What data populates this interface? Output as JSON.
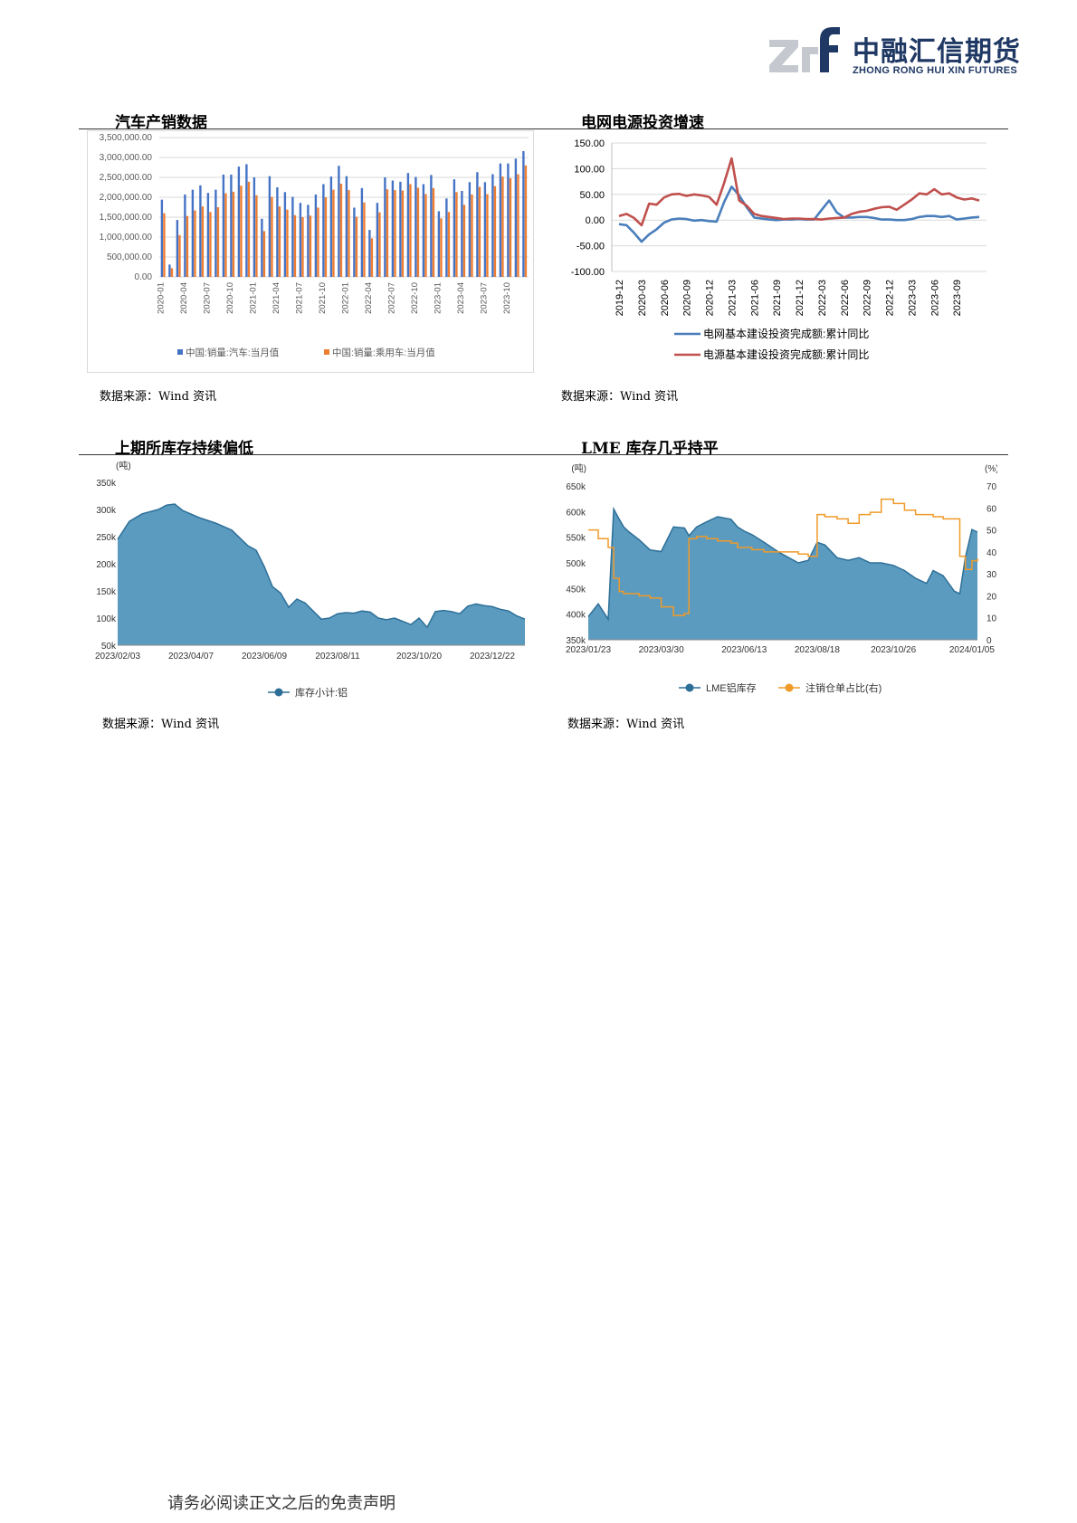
{
  "logo": {
    "mark": "zrf",
    "name_cn": "中融汇信期货",
    "name_en": "ZHONG RONG HUI XIN FUTURES"
  },
  "sections": [
    {
      "title": "汽车产销数据",
      "source": "数据来源：Wind 资讯"
    },
    {
      "title": "电网电源投资增速",
      "source": "数据来源：Wind 资讯"
    },
    {
      "title": "上期所库存持续偏低",
      "source": "数据来源：Wind 资讯"
    },
    {
      "title": "LME 库存几乎持平",
      "source": "数据来源：Wind 资讯"
    }
  ],
  "footer": "请务必阅读正文之后的免责声明",
  "chart_data": [
    {
      "type": "bar",
      "title": "汽车产销数据",
      "ylim": [
        0,
        3500000
      ],
      "yticks": [
        0,
        500000,
        1000000,
        1500000,
        2000000,
        2500000,
        3000000,
        3500000
      ],
      "ytick_labels": [
        "0.00",
        "500,000.00",
        "1,000,000.00",
        "1,500,000.00",
        "2,000,000.00",
        "2,500,000.00",
        "3,000,000.00",
        "3,500,000.00"
      ],
      "xtick_labels": [
        "2020-01",
        "2020-04",
        "2020-07",
        "2020-10",
        "2021-01",
        "2021-04",
        "2021-07",
        "2021-10",
        "2022-01",
        "2022-04",
        "2022-07",
        "2022-10",
        "2023-01",
        "2023-04",
        "2023-07",
        "2023-10"
      ],
      "legend_position": "bottom",
      "series": [
        {
          "name": "中国:销量:汽车:当月值",
          "color": "#4472c4",
          "values": [
            1940000,
            310000,
            1430000,
            2070000,
            2190000,
            2300000,
            2110000,
            2190000,
            2570000,
            2570000,
            2770000,
            2830000,
            2500000,
            1460000,
            2530000,
            2250000,
            2130000,
            2010000,
            1860000,
            1810000,
            2070000,
            2330000,
            2520000,
            2790000,
            2530000,
            1740000,
            2230000,
            1180000,
            1860000,
            2500000,
            2420000,
            2390000,
            2610000,
            2510000,
            2330000,
            2560000,
            1650000,
            1970000,
            2450000,
            2160000,
            2380000,
            2630000,
            2380000,
            2580000,
            2850000,
            2850000,
            2970000,
            3160000
          ]
        },
        {
          "name": "中国:销量:乘用车:当月值",
          "color": "#ed7d31",
          "values": [
            1600000,
            220000,
            1050000,
            1530000,
            1670000,
            1770000,
            1630000,
            1750000,
            2100000,
            2140000,
            2290000,
            2390000,
            2050000,
            1150000,
            2010000,
            1770000,
            1690000,
            1550000,
            1500000,
            1540000,
            1740000,
            2000000,
            2190000,
            2340000,
            2180000,
            1510000,
            1870000,
            970000,
            1620000,
            2200000,
            2180000,
            2170000,
            2330000,
            2240000,
            2080000,
            2230000,
            1470000,
            1630000,
            2130000,
            1810000,
            2070000,
            2260000,
            2080000,
            2280000,
            2520000,
            2480000,
            2580000,
            2800000
          ]
        }
      ]
    },
    {
      "type": "line",
      "title": "电网电源投资增速",
      "ylim": [
        -100,
        150
      ],
      "yticks": [
        -100,
        -50,
        0,
        50,
        100,
        150
      ],
      "ytick_labels": [
        "-100.00",
        "-50.00",
        "0.00",
        "50.00",
        "100.00",
        "150.00"
      ],
      "xtick_labels": [
        "2019-12",
        "2020-03",
        "2020-06",
        "2020-09",
        "2020-12",
        "2021-03",
        "2021-06",
        "2021-09",
        "2021-12",
        "2022-03",
        "2022-06",
        "2022-09",
        "2022-12",
        "2023-03",
        "2023-06",
        "2023-09"
      ],
      "legend_position": "bottom",
      "series": [
        {
          "name": "电网基本建设投资完成额:累计同比",
          "color": "#4a7ebb",
          "values": [
            -8,
            -10,
            -25,
            -42,
            -28,
            -18,
            -5,
            1,
            3,
            2,
            -1,
            0,
            -2,
            -3,
            35,
            65,
            48,
            25,
            5,
            3,
            1,
            0,
            1,
            1,
            2,
            1,
            1,
            20,
            38,
            15,
            5,
            5,
            6,
            6,
            4,
            1,
            1,
            0,
            0,
            2,
            6,
            8,
            8,
            6,
            8,
            1,
            3,
            5,
            6
          ]
        },
        {
          "name": "电源基本建设投资完成额:累计同比",
          "color": "#c0504d",
          "values": [
            8,
            12,
            4,
            -10,
            32,
            30,
            44,
            50,
            51,
            47,
            50,
            48,
            45,
            30,
            72,
            120,
            38,
            28,
            12,
            8,
            6,
            4,
            2,
            3,
            3,
            2,
            2,
            1,
            3,
            4,
            5,
            12,
            16,
            18,
            22,
            25,
            26,
            20,
            30,
            40,
            52,
            50,
            60,
            50,
            52,
            44,
            40,
            42,
            38
          ]
        }
      ]
    },
    {
      "type": "area",
      "title": "上期所库存持续偏低",
      "yunit": "(吨)",
      "ylim": [
        50000,
        350000
      ],
      "ytick_labels": [
        "50k",
        "100k",
        "150k",
        "200k",
        "250k",
        "300k",
        "350k"
      ],
      "xtick_labels": [
        "2023/02/03",
        "2023/04/07",
        "2023/06/09",
        "2023/08/11",
        "2023/10/20",
        "2023/12/22"
      ],
      "legend_position": "bottom",
      "series": [
        {
          "name": "库存小计:铝",
          "color": "#2e6f98",
          "fill": "#5b9bbf",
          "x": [
            "2023/02/03",
            "2023/02/13",
            "2023/02/24",
            "2023/03/10",
            "2023/03/17",
            "2023/03/24",
            "2023/03/31",
            "2023/04/14",
            "2023/04/28",
            "2023/05/12",
            "2023/05/26",
            "2023/06/02",
            "2023/06/09",
            "2023/06/16",
            "2023/06/23",
            "2023/06/30",
            "2023/07/07",
            "2023/07/14",
            "2023/07/28",
            "2023/08/04",
            "2023/08/11",
            "2023/08/18",
            "2023/08/25",
            "2023/09/01",
            "2023/09/08",
            "2023/09/15",
            "2023/09/22",
            "2023/09/29",
            "2023/10/13",
            "2023/10/20",
            "2023/10/27",
            "2023/11/03",
            "2023/11/10",
            "2023/11/17",
            "2023/11/24",
            "2023/12/01",
            "2023/12/08",
            "2023/12/15",
            "2023/12/22",
            "2023/12/29",
            "2024/01/05",
            "2024/01/12",
            "2024/01/19"
          ],
          "values": [
            245000,
            278000,
            292000,
            300000,
            308000,
            310000,
            298000,
            285000,
            275000,
            262000,
            233000,
            225000,
            195000,
            158000,
            146000,
            120000,
            135000,
            128000,
            98000,
            100000,
            108000,
            110000,
            109000,
            113000,
            111000,
            100000,
            97000,
            100000,
            88000,
            100000,
            83000,
            112000,
            114000,
            112000,
            108000,
            122000,
            126000,
            123000,
            121000,
            116000,
            113000,
            104000,
            98000
          ]
        }
      ]
    },
    {
      "type": "line",
      "title": "LME 库存几乎持平",
      "yunit_left": "(吨)",
      "yunit_right": "(%)",
      "ylim_left": [
        350000,
        650000
      ],
      "ylim_right": [
        0,
        70
      ],
      "ytick_labels_left": [
        "350k",
        "400k",
        "450k",
        "500k",
        "550k",
        "600k",
        "650k"
      ],
      "ytick_labels_right": [
        "0",
        "10",
        "20",
        "30",
        "40",
        "50",
        "60",
        "70"
      ],
      "xtick_labels": [
        "2023/01/23",
        "2023/03/30",
        "2023/06/13",
        "2023/08/18",
        "2023/10/26",
        "2024/01/05"
      ],
      "legend_position": "bottom",
      "series": [
        {
          "name": "LME铝库存",
          "axis": "left",
          "color": "#2e6f98",
          "fill": "#5b9bbf",
          "x": [
            "2023/01/23",
            "2023/02/01",
            "2023/02/10",
            "2023/02/15",
            "2023/02/20",
            "2023/02/24",
            "2023/03/01",
            "2023/03/10",
            "2023/03/20",
            "2023/03/30",
            "2023/04/10",
            "2023/04/20",
            "2023/04/24",
            "2023/05/01",
            "2023/05/10",
            "2023/05/20",
            "2023/06/01",
            "2023/06/07",
            "2023/06/13",
            "2023/06/20",
            "2023/07/01",
            "2023/07/15",
            "2023/08/01",
            "2023/08/10",
            "2023/08/18",
            "2023/08/25",
            "2023/09/05",
            "2023/09/15",
            "2023/09/25",
            "2023/10/05",
            "2023/10/15",
            "2023/10/26",
            "2023/11/05",
            "2023/11/15",
            "2023/11/25",
            "2023/12/01",
            "2023/12/10",
            "2023/12/20",
            "2023/12/25",
            "2023/12/30",
            "2024/01/05",
            "2024/01/10"
          ],
          "values": [
            395000,
            420000,
            390000,
            605000,
            585000,
            570000,
            560000,
            545000,
            525000,
            522000,
            570000,
            568000,
            553000,
            570000,
            580000,
            590000,
            585000,
            570000,
            562000,
            555000,
            540000,
            520000,
            500000,
            505000,
            540000,
            535000,
            510000,
            505000,
            510000,
            500000,
            500000,
            495000,
            485000,
            470000,
            460000,
            485000,
            475000,
            445000,
            440000,
            510000,
            565000,
            560000
          ]
        },
        {
          "name": "注销仓单占比(右)",
          "axis": "right",
          "color": "#f09a2a",
          "x": [
            "2023/01/23",
            "2023/02/01",
            "2023/02/10",
            "2023/02/15",
            "2023/02/20",
            "2023/02/24",
            "2023/03/01",
            "2023/03/10",
            "2023/03/20",
            "2023/03/30",
            "2023/04/10",
            "2023/04/20",
            "2023/04/24",
            "2023/05/01",
            "2023/05/10",
            "2023/05/20",
            "2023/06/01",
            "2023/06/07",
            "2023/06/13",
            "2023/06/20",
            "2023/07/01",
            "2023/07/15",
            "2023/08/01",
            "2023/08/10",
            "2023/08/18",
            "2023/08/25",
            "2023/09/05",
            "2023/09/15",
            "2023/09/25",
            "2023/10/05",
            "2023/10/15",
            "2023/10/26",
            "2023/11/05",
            "2023/11/15",
            "2023/11/25",
            "2023/12/01",
            "2023/12/10",
            "2023/12/20",
            "2023/12/25",
            "2023/12/30",
            "2024/01/05",
            "2024/01/10"
          ],
          "values": [
            50,
            46,
            42,
            28,
            22,
            21,
            21,
            20,
            19,
            15,
            11,
            12,
            46,
            47,
            46,
            45,
            44,
            42,
            42,
            41,
            40,
            40,
            39,
            38,
            57,
            56,
            55,
            53,
            57,
            58,
            64,
            62,
            59,
            57,
            57,
            56,
            55,
            55,
            38,
            32,
            36,
            37
          ]
        }
      ]
    }
  ]
}
